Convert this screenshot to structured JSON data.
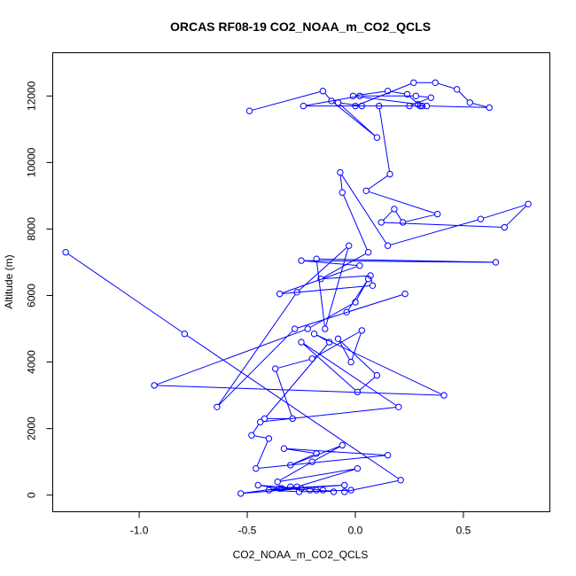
{
  "chart_data": {
    "type": "scatter",
    "title": "ORCAS RF08-19 CO2_NOAA_m_CO2_QCLS",
    "xlabel": "CO2_NOAA_m_CO2_QCLS",
    "ylabel": "Altitude (m)",
    "xlim": [
      -1.4,
      0.9
    ],
    "ylim": [
      -500,
      13300
    ],
    "xticks": [
      -1.0,
      -0.5,
      0.0,
      0.5
    ],
    "xtick_labels": [
      "-1.0",
      "-0.5",
      "0.0",
      "0.5"
    ],
    "yticks": [
      0,
      2000,
      4000,
      6000,
      8000,
      10000,
      12000
    ],
    "ytick_labels": [
      "0",
      "2000",
      "4000",
      "6000",
      "8000",
      "10000",
      "12000"
    ],
    "grid": false,
    "connected": true,
    "marker": "open-circle",
    "color": "#0000ff",
    "series": [
      {
        "x": [
          -0.49,
          -0.15,
          -0.11,
          0.1,
          -0.08,
          0.03,
          0.0,
          0.27,
          0.37,
          0.47,
          0.53,
          0.62,
          0.33,
          -0.24,
          0.02,
          0.28,
          0.35,
          0.25,
          0.3,
          0.24,
          0.15,
          -0.01,
          0.29,
          0.31,
          0.11,
          0.16,
          0.05,
          0.38,
          0.22,
          0.18,
          0.12,
          0.69,
          0.8,
          0.58,
          0.15,
          -0.07,
          -0.06,
          0.06,
          -0.16,
          0.07,
          0.08,
          -0.35,
          0.02,
          -0.25,
          0.65,
          -0.18,
          -0.14,
          -0.03,
          -0.27,
          -0.64,
          -0.28,
          0.23,
          -0.04,
          0.06,
          0.0,
          -0.22,
          -0.93,
          0.41,
          -0.19,
          -0.12,
          -0.42,
          -0.29,
          -0.37,
          -0.2,
          0.03,
          -0.02,
          -0.08,
          0.1,
          0.01,
          -0.25,
          0.2,
          -0.44,
          -0.48,
          -0.4,
          -0.46,
          0.15,
          -0.33,
          -0.18,
          -0.3,
          -0.06,
          -0.2,
          -0.36,
          0.01,
          -0.27,
          -0.35,
          -0.45,
          -0.25,
          -0.53,
          -0.3,
          -0.15,
          -0.1,
          -0.18,
          -0.21,
          -0.34,
          -0.05,
          -0.4,
          -0.26,
          -0.02,
          -0.05,
          0.21,
          -0.79,
          -1.34
        ],
        "y": [
          11550,
          12150,
          11850,
          10750,
          11800,
          11700,
          11700,
          12400,
          12400,
          12200,
          11800,
          11650,
          11700,
          11700,
          12000,
          12000,
          11950,
          11700,
          11700,
          12050,
          12150,
          12000,
          11750,
          11700,
          11700,
          9650,
          9150,
          8450,
          8200,
          8600,
          8200,
          8050,
          8750,
          8300,
          7500,
          9700,
          9100,
          7300,
          6500,
          6600,
          6300,
          6050,
          6900,
          7050,
          7000,
          7100,
          5000,
          7500,
          6100,
          2650,
          5000,
          6050,
          5500,
          6500,
          5800,
          5000,
          3300,
          3000,
          4850,
          4600,
          2300,
          2300,
          3800,
          4100,
          4950,
          4000,
          4700,
          3600,
          3100,
          4600,
          2650,
          2200,
          1800,
          1700,
          800,
          1200,
          1400,
          1250,
          900,
          1500,
          1000,
          400,
          800,
          250,
          200,
          300,
          200,
          50,
          250,
          150,
          100,
          150,
          150,
          200,
          300,
          150,
          100,
          150,
          100,
          450,
          4850,
          7300
        ]
      }
    ]
  }
}
